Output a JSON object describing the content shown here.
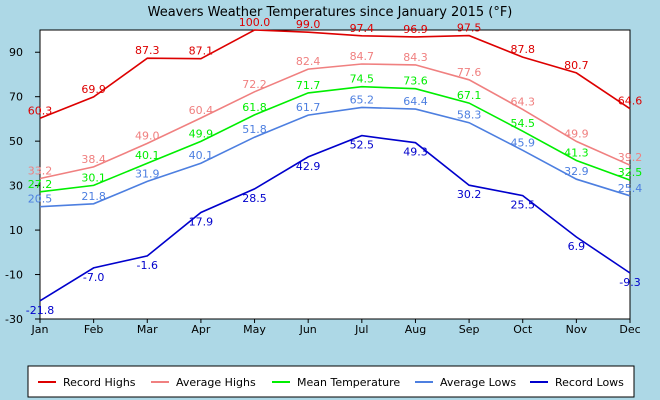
{
  "chart_data": {
    "type": "line",
    "title": "Weavers Weather Temperatures since January 2015 (°F)",
    "xlabel": "",
    "ylabel": "",
    "categories": [
      "Jan",
      "Feb",
      "Mar",
      "Apr",
      "May",
      "Jun",
      "Jul",
      "Aug",
      "Sep",
      "Oct",
      "Nov",
      "Dec"
    ],
    "ylim": [
      -30,
      100
    ],
    "yticks": [
      -30,
      -10,
      10,
      30,
      50,
      70,
      90
    ],
    "grid": false,
    "legend_position": "bottom",
    "series": [
      {
        "name": "Record Highs",
        "color": "#dd0000",
        "values": [
          60.3,
          69.9,
          87.3,
          87.1,
          100.0,
          99.0,
          97.4,
          96.9,
          97.5,
          87.8,
          80.7,
          64.6
        ],
        "labels": [
          "60.3",
          "69.9",
          "87.3",
          "87.1",
          "100.0",
          "99.0",
          "97.4",
          "96.9",
          "97.5",
          "87.8",
          "80.7",
          "64.6"
        ]
      },
      {
        "name": "Average Highs",
        "color": "#f08080",
        "values": [
          33.2,
          38.4,
          49.0,
          60.4,
          72.2,
          82.4,
          84.7,
          84.3,
          77.6,
          64.3,
          49.9,
          39.2
        ],
        "labels": [
          "33.2",
          "38.4",
          "49.0",
          "60.4",
          "72.2",
          "82.4",
          "84.7",
          "84.3",
          "77.6",
          "64.3",
          "49.9",
          "39.2"
        ]
      },
      {
        "name": "Mean Temperature",
        "color": "#00ee00",
        "values": [
          27.2,
          30.1,
          40.1,
          49.9,
          61.8,
          71.7,
          74.5,
          73.6,
          67.1,
          54.5,
          41.3,
          32.5
        ],
        "labels": [
          "27.2",
          "30.1",
          "40.1",
          "49.9",
          "61.8",
          "71.7",
          "74.5",
          "73.6",
          "67.1",
          "54.5",
          "41.3",
          "32.5"
        ]
      },
      {
        "name": "Average Lows",
        "color": "#4d7fe0",
        "values": [
          20.5,
          21.8,
          31.9,
          40.1,
          51.8,
          61.7,
          65.2,
          64.4,
          58.3,
          45.9,
          32.9,
          25.4
        ],
        "labels": [
          "20.5",
          "21.8",
          "31.9",
          "40.1",
          "51.8",
          "61.7",
          "65.2",
          "64.4",
          "58.3",
          "45.9",
          "32.9",
          "25.4"
        ]
      },
      {
        "name": "Record Lows",
        "color": "#0000cc",
        "values": [
          -21.8,
          -7.0,
          -1.6,
          17.9,
          28.5,
          42.9,
          52.5,
          49.3,
          30.2,
          25.5,
          6.9,
          -9.3
        ],
        "labels": [
          "-21.8",
          "-7.0",
          "-1.6",
          "17.9",
          "28.5",
          "42.9",
          "52.5",
          "49.3",
          "30.2",
          "25.5",
          "6.9",
          "-9.3"
        ]
      }
    ]
  }
}
